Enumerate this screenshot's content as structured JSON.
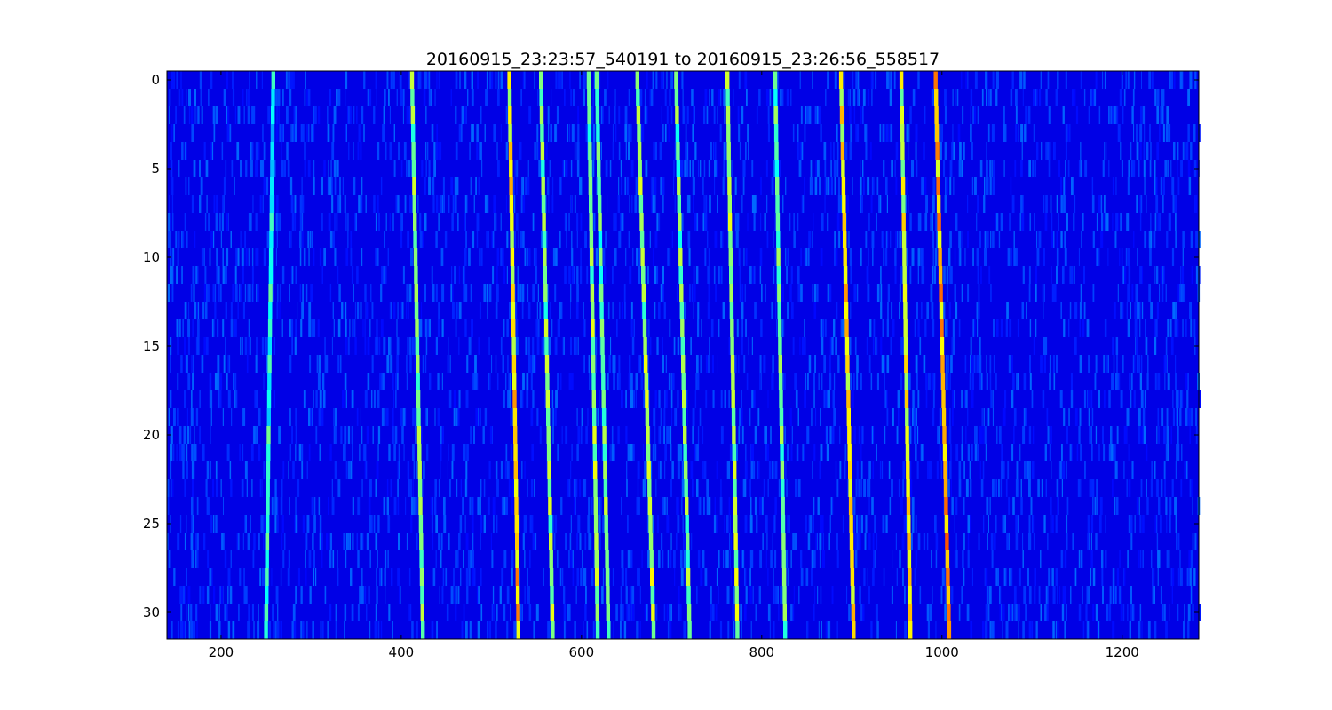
{
  "chart_data": {
    "type": "heatmap",
    "title": "20160915_23:23:57_540191 to 20160915_23:26:56_558517",
    "xlabel": "",
    "ylabel": "",
    "colormap": "jet",
    "xlim": [
      140,
      1285
    ],
    "ylim": [
      31.5,
      -0.5
    ],
    "rows": 32,
    "x_ticks": [
      200,
      400,
      600,
      800,
      1000,
      1200
    ],
    "y_ticks": [
      0,
      5,
      10,
      15,
      20,
      25,
      30
    ],
    "background_level": 0.1,
    "ridges": [
      {
        "x0": 258,
        "x1": 250,
        "level": 0.3
      },
      {
        "x0": 412,
        "x1": 424,
        "level": 0.42
      },
      {
        "x0": 520,
        "x1": 530,
        "level": 0.55
      },
      {
        "x0": 555,
        "x1": 568,
        "level": 0.4
      },
      {
        "x0": 608,
        "x1": 618,
        "level": 0.42
      },
      {
        "x0": 617,
        "x1": 630,
        "level": 0.38
      },
      {
        "x0": 662,
        "x1": 680,
        "level": 0.43
      },
      {
        "x0": 705,
        "x1": 720,
        "level": 0.4
      },
      {
        "x0": 762,
        "x1": 773,
        "level": 0.44
      },
      {
        "x0": 815,
        "x1": 826,
        "level": 0.38
      },
      {
        "x0": 888,
        "x1": 902,
        "level": 0.55
      },
      {
        "x0": 955,
        "x1": 965,
        "level": 0.5
      },
      {
        "x0": 993,
        "x1": 1008,
        "level": 0.6
      }
    ]
  }
}
